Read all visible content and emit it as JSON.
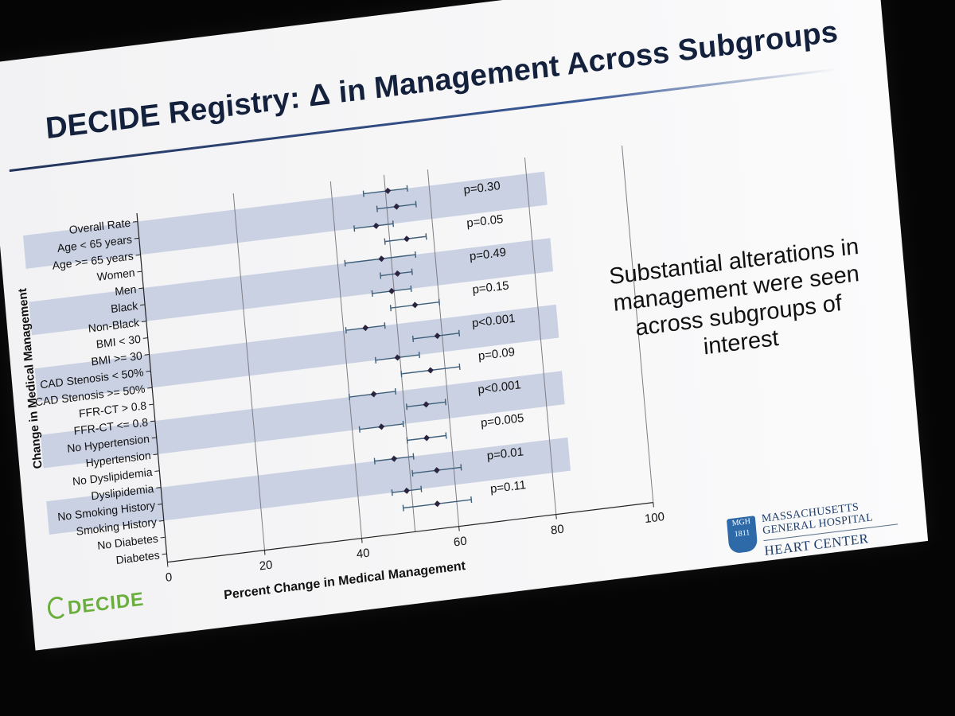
{
  "slide": {
    "title": "DECIDE Registry: Δ in Management Across Subgroups",
    "callout": "Substantial alterations in management were seen across subgroups of interest",
    "logo_left": "DECIDE",
    "logo_right_name": "MASSACHUSETTS GENERAL HOSPITAL",
    "logo_right_dept": "HEART CENTER",
    "logo_right_seal": "MGH 1811",
    "colors": {
      "band": "#c9d1e3",
      "marker": "#2a2440",
      "error_bar": "#3e5f7a",
      "title": "#14213d",
      "logo_green": "#6aae3c",
      "logo_blue": "#1e3e6b"
    }
  },
  "chart_data": {
    "type": "forest",
    "xlabel": "Percent Change in Medical Management",
    "ylabel": "Change in Medical Management",
    "xlim": [
      0,
      100
    ],
    "xticks": [
      0,
      20,
      40,
      60,
      80,
      100
    ],
    "grid": "vertical",
    "reference_line": 51,
    "rows": [
      {
        "label": "Overall Rate",
        "estimate": 51.5,
        "low": 46.5,
        "high": 55.5
      },
      {
        "label": "Age < 65 years",
        "estimate": 53,
        "low": 49,
        "high": 57
      },
      {
        "label": "Age >= 65 years",
        "estimate": 48.5,
        "low": 44,
        "high": 52
      },
      {
        "label": "Women",
        "estimate": 54.5,
        "low": 50,
        "high": 58.5
      },
      {
        "label": "Men",
        "estimate": 49,
        "low": 41.5,
        "high": 56
      },
      {
        "label": "Black",
        "estimate": 52,
        "low": 48.5,
        "high": 55
      },
      {
        "label": "Non-Black",
        "estimate": 50.5,
        "low": 46.5,
        "high": 54.5
      },
      {
        "label": "BMI < 30",
        "estimate": 55,
        "low": 50,
        "high": 60
      },
      {
        "label": "BMI >= 30",
        "estimate": 44.5,
        "low": 40.5,
        "high": 48.5
      },
      {
        "label": "CAD Stenosis < 50%",
        "estimate": 59,
        "low": 54,
        "high": 63.5
      },
      {
        "label": "CAD Stenosis >= 50%",
        "estimate": 50.5,
        "low": 46,
        "high": 55
      },
      {
        "label": "FFR-CT > 0.8",
        "estimate": 57,
        "low": 51,
        "high": 63
      },
      {
        "label": "FFR-CT <= 0.8",
        "estimate": 45,
        "low": 40,
        "high": 49.5
      },
      {
        "label": "No Hypertension",
        "estimate": 55.5,
        "low": 51.5,
        "high": 59.5
      },
      {
        "label": "Hypertension",
        "estimate": 46,
        "low": 41.5,
        "high": 50.5
      },
      {
        "label": "No Dyslipidemia",
        "estimate": 55,
        "low": 51,
        "high": 59
      },
      {
        "label": "Dyslipidemia",
        "estimate": 48,
        "low": 44,
        "high": 52
      },
      {
        "label": "No Smoking History",
        "estimate": 56.5,
        "low": 51.5,
        "high": 61.5
      },
      {
        "label": "Smoking History",
        "estimate": 50,
        "low": 47,
        "high": 53
      },
      {
        "label": "No Diabetes",
        "estimate": 56,
        "low": 49,
        "high": 63
      }
    ],
    "last_row_label": "Diabetes",
    "groups": [
      {
        "rows": [
          1,
          2
        ],
        "p": "p=0.30"
      },
      {
        "rows": [
          3,
          4
        ],
        "p": "p=0.05"
      },
      {
        "rows": [
          5,
          6
        ],
        "p": "p=0.49"
      },
      {
        "rows": [
          7,
          8
        ],
        "p": "p=0.15"
      },
      {
        "rows": [
          9,
          10
        ],
        "p": "p<0.001"
      },
      {
        "rows": [
          11,
          12
        ],
        "p": "p=0.09"
      },
      {
        "rows": [
          13,
          14
        ],
        "p": "p<0.001"
      },
      {
        "rows": [
          15,
          16
        ],
        "p": "p=0.005"
      },
      {
        "rows": [
          17,
          18
        ],
        "p": "p=0.01"
      },
      {
        "rows": [
          19,
          20
        ],
        "p": "p=0.11"
      }
    ]
  }
}
